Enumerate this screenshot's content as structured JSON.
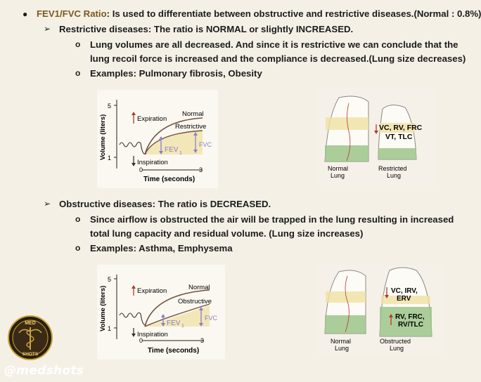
{
  "header": {
    "term": "FEV1/FVC Ratio",
    "text": ": Is used to differentiate between obstructive and restrictive diseases.(Normal : 0.8%)"
  },
  "restrictive": {
    "heading": "Restrictive diseases: The ratio is NORMAL or slightly INCREASED.",
    "point1_line1": "Lung volumes are all decreased. And since it is restrictive we can conclude that the",
    "point1_line2": "lung recoil force is increased and the compliance is decreased.(Lung size decreases)",
    "point2": "Examples: Pulmonary fibrosis, Obesity",
    "graph": {
      "ylabel": "Volume (liters)",
      "xlabel": "Time (seconds)",
      "expiration": "Expiration",
      "inspiration": "Inspiration",
      "normal": "Normal",
      "curve": "Restrictive",
      "fev": "FEV",
      "fev_sub": "1",
      "fvc": "FVC",
      "ytick_5": "5",
      "ytick_1": "1",
      "xtick_0": "0",
      "xtick_3": "3"
    },
    "lungs": {
      "volumes_line1": "VC, RV, FRC",
      "volumes_line2": "VT, TLC",
      "left_label_1": "Normal",
      "left_label_2": "Lung",
      "right_label_1": "Restricted",
      "right_label_2": "Lung"
    }
  },
  "obstructive": {
    "heading": "Obstructive diseases: The ratio is DECREASED.",
    "point1_line1": "Since airflow is obstructed the air will be trapped in the lung resulting in increased",
    "point1_line2": "total lung capacity and residual volume. (Lung size increases)",
    "point2": "Examples: Asthma, Emphysema",
    "graph": {
      "ylabel": "Volume (liters)",
      "xlabel": "Time (seconds)",
      "expiration": "Expiration",
      "inspiration": "Inspiration",
      "normal": "Normal",
      "curve": "Obstructive",
      "fev": "FEV",
      "fev_sub": "1",
      "fvc": "FVC",
      "ytick_5": "5",
      "ytick_1": "1",
      "xtick_0": "0",
      "xtick_3": "3"
    },
    "lungs": {
      "down_line1": "VC, IRV,",
      "down_line2": "ERV",
      "up_line1": "RV, FRC,",
      "up_line2": "RV/TLC",
      "left_label_1": "Normal",
      "left_label_2": "Lung",
      "right_label_1": "Obstructed",
      "right_label_2": "Lung"
    }
  },
  "logo": {
    "top": "MED",
    "bottom": "SHOTS"
  },
  "watermark": "@medshots",
  "colors": {
    "accent": "#7a5a1c",
    "arrow_red": "#b0392e",
    "fev_purple": "#8b7fc2",
    "lung_green": "#9cc48a",
    "lung_yellow": "#efe2a4",
    "curve_brown": "#6f5140"
  }
}
